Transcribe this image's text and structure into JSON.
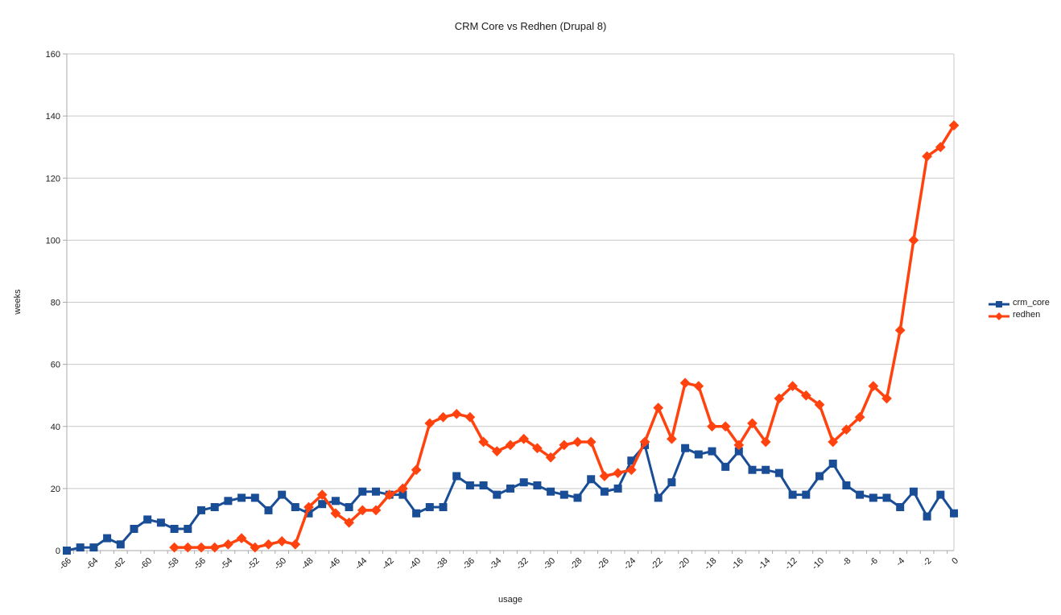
{
  "chart_data": {
    "type": "line",
    "title": "CRM Core vs Redhen (Drupal 8)",
    "xlabel": "usage",
    "ylabel": "weeks",
    "x_range": [
      -66,
      0
    ],
    "x_label_step": 2,
    "ylim": [
      0,
      160
    ],
    "y_tick_step": 20,
    "grid": true,
    "legend_position": "right",
    "series": [
      {
        "name": "crm_core",
        "color": "#194D96",
        "marker": "square",
        "x_start": -66,
        "values": [
          0,
          1,
          1,
          4,
          2,
          7,
          10,
          9,
          7,
          7,
          13,
          14,
          16,
          17,
          17,
          13,
          18,
          14,
          12,
          15,
          16,
          14,
          19,
          19,
          18,
          18,
          12,
          14,
          14,
          24,
          21,
          21,
          18,
          20,
          22,
          21,
          19,
          18,
          17,
          23,
          19,
          20,
          29,
          34,
          17,
          22,
          33,
          31,
          32,
          27,
          32,
          26,
          26,
          25,
          18,
          18,
          24,
          28,
          21,
          18,
          17,
          17,
          14,
          19,
          11,
          18,
          12
        ]
      },
      {
        "name": "redhen",
        "color": "#FF420E",
        "marker": "diamond",
        "x_start": -58,
        "values": [
          1,
          1,
          1,
          1,
          2,
          4,
          1,
          2,
          3,
          2,
          14,
          18,
          12,
          9,
          13,
          13,
          18,
          20,
          26,
          41,
          43,
          44,
          43,
          35,
          32,
          34,
          36,
          33,
          30,
          34,
          35,
          35,
          24,
          25,
          26,
          35,
          46,
          36,
          54,
          53,
          40,
          40,
          34,
          41,
          35,
          49,
          53,
          50,
          47,
          35,
          39,
          43,
          53,
          49,
          71,
          100,
          127,
          130,
          137
        ]
      }
    ]
  },
  "colors": {
    "grid": "#c9c9c9",
    "axis": "#a9a9a9",
    "text": "#1a1a1a",
    "background": "#ffffff"
  }
}
